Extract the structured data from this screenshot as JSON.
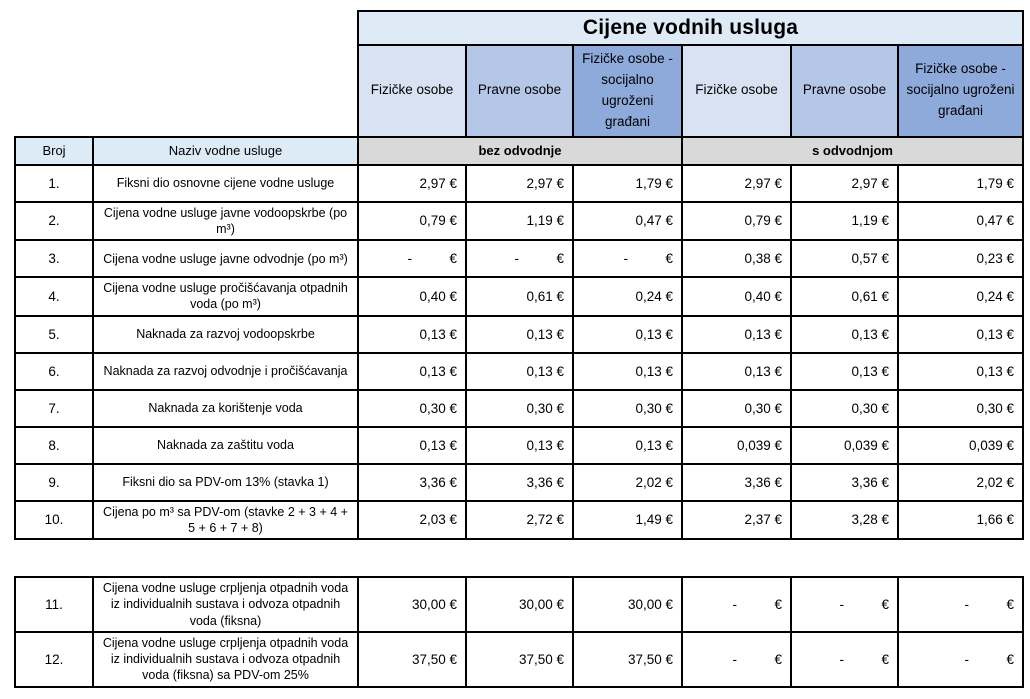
{
  "title": "Cijene vodnih usluga",
  "column_headers": [
    "Fizičke osobe",
    "Pravne osobe",
    "Fizičke osobe - socijalno ugroženi građani",
    "Fizičke osobe",
    "Pravne osobe",
    "Fizičke osobe - socijalno ugroženi građani"
  ],
  "subheaders": {
    "broj": "Broj",
    "naziv": "Naziv vodne usluge",
    "bez_odvodnje": "bez odvodnje",
    "s_odvodnjom": "s odvodnjom"
  },
  "rows": [
    {
      "num": "1.",
      "name": "Fiksni dio osnovne cijene vodne usluge",
      "values": [
        "2,97 €",
        "2,97 €",
        "1,79 €",
        "2,97 €",
        "2,97 €",
        "1,79 €"
      ]
    },
    {
      "num": "2.",
      "name": "Cijena vodne usluge javne vodoopskrbe (po m³)",
      "values": [
        "0,79 €",
        "1,19 €",
        "0,47 €",
        "0,79 €",
        "1,19 €",
        "0,47 €"
      ]
    },
    {
      "num": "3.",
      "name": "Cijena vodne usluge javne odvodnje (po m³)",
      "values": [
        "-          €",
        "-          €",
        "-          €",
        "0,38 €",
        "0,57 €",
        "0,23 €"
      ]
    },
    {
      "num": "4.",
      "name": "Cijena vodne usluge pročišćavanja otpadnih voda  (po m³)",
      "values": [
        "0,40 €",
        "0,61 €",
        "0,24 €",
        "0,40 €",
        "0,61 €",
        "0,24 €"
      ]
    },
    {
      "num": "5.",
      "name": "Naknada za razvoj vodoopskrbe",
      "values": [
        "0,13 €",
        "0,13 €",
        "0,13 €",
        "0,13 €",
        "0,13 €",
        "0,13 €"
      ]
    },
    {
      "num": "6.",
      "name": "Naknada za razvoj odvodnje i pročišćavanja",
      "values": [
        "0,13 €",
        "0,13 €",
        "0,13 €",
        "0,13 €",
        "0,13 €",
        "0,13 €"
      ]
    },
    {
      "num": "7.",
      "name": "Naknada za korištenje voda",
      "values": [
        "0,30 €",
        "0,30 €",
        "0,30 €",
        "0,30 €",
        "0,30 €",
        "0,30 €"
      ]
    },
    {
      "num": "8.",
      "name": "Naknada za zaštitu voda",
      "values": [
        "0,13 €",
        "0,13 €",
        "0,13 €",
        "0,039 €",
        "0,039 €",
        "0,039 €"
      ]
    },
    {
      "num": "9.",
      "name": "Fiksni dio sa PDV-om 13% (stavka 1)",
      "values": [
        "3,36 €",
        "3,36 €",
        "2,02 €",
        "3,36 €",
        "3,36 €",
        "2,02 €"
      ]
    },
    {
      "num": "10.",
      "name": "Cijena po m³ sa PDV-om (stavke 2 + 3 + 4 + 5 + 6 + 7 + 8)",
      "values": [
        "2,03 €",
        "2,72 €",
        "1,49 €",
        "2,37 €",
        "3,28 €",
        "1,66 €"
      ]
    }
  ],
  "rows2": [
    {
      "num": "11.",
      "name": "Cijena vodne usluge crpljenja otpadnih voda iz individualnih sustava i odvoza otpadnih voda (fiksna)",
      "values": [
        "30,00 €",
        "30,00 €",
        "30,00 €",
        "-          €",
        "-          €",
        "-          €"
      ]
    },
    {
      "num": "12.",
      "name": "Cijena vodne usluge crpljenja otpadnih voda iz individualnih sustava i odvoza otpadnih voda (fiksna) sa PDV-om 25%",
      "values": [
        "37,50 €",
        "37,50 €",
        "37,50 €",
        "-          €",
        "-          €",
        "-          €"
      ]
    }
  ],
  "colors": {
    "title_bg": "#deeaf6",
    "header_light": "#d9e2f3",
    "header_medium": "#b4c7e7",
    "header_dark": "#8eaadb",
    "subheader_blue": "#ddebf7",
    "subheader_gray": "#d9d9d9",
    "border": "#000000"
  }
}
